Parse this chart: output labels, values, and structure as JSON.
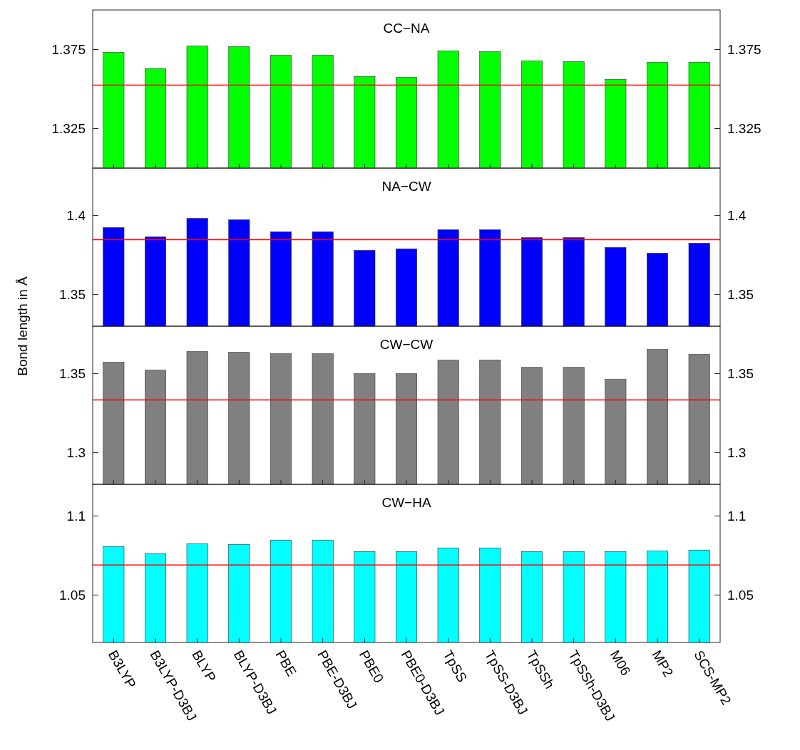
{
  "chart_data": [
    {
      "type": "bar",
      "title": "CC−NA",
      "categories": [
        null,
        null,
        null,
        null,
        null,
        null,
        null,
        null,
        null,
        null,
        null,
        null,
        null,
        null,
        null
      ],
      "values": [
        1.3732,
        1.3629,
        1.3772,
        1.3768,
        1.3714,
        1.3714,
        1.3579,
        1.3574,
        1.3741,
        1.3736,
        1.3678,
        1.3673,
        1.3561,
        1.3669,
        1.3669
      ],
      "color": "#00ff00",
      "ylim": [
        1.3,
        1.4
      ],
      "yticks": [
        1.325,
        1.375
      ],
      "y2lim": [
        1.3,
        1.4
      ],
      "y2ticks": [
        1.325,
        1.375
      ],
      "ref_lines": [
        {
          "axis": "y",
          "value": 1.3525,
          "color": "#ff0000"
        }
      ]
    },
    {
      "type": "bar",
      "title": "NA−CW",
      "categories": [
        null,
        null,
        null,
        null,
        null,
        null,
        null,
        null,
        null,
        null,
        null,
        null,
        null,
        null,
        null
      ],
      "values": [
        1.3924,
        1.3865,
        1.3982,
        1.3973,
        1.3897,
        1.3897,
        1.378,
        1.3789,
        1.391,
        1.391,
        1.386,
        1.386,
        1.3798,
        1.3762,
        1.3825
      ],
      "color": "#0000ff",
      "ylim": [
        1.33,
        1.43
      ],
      "yticks": [
        1.35,
        1.4
      ],
      "y2lim": [
        1.33,
        1.43
      ],
      "y2ticks": [
        1.35,
        1.4
      ],
      "ref_lines": [
        {
          "axis": "y",
          "value": 1.3847,
          "color": "#ff0000"
        }
      ]
    },
    {
      "type": "bar",
      "title": "CW−CW",
      "ylabel": "Bond length in Å",
      "categories": [
        null,
        null,
        null,
        null,
        null,
        null,
        null,
        null,
        null,
        null,
        null,
        null,
        null,
        null,
        null
      ],
      "values": [
        1.3572,
        1.3522,
        1.364,
        1.3635,
        1.3626,
        1.3626,
        1.35,
        1.35,
        1.3586,
        1.3586,
        1.354,
        1.354,
        1.3464,
        1.3653,
        1.3622
      ],
      "color": "#808080",
      "ylim": [
        1.28,
        1.38
      ],
      "yticks": [
        1.3,
        1.35
      ],
      "y2lim": [
        1.28,
        1.38
      ],
      "y2ticks": [
        1.3,
        1.35
      ],
      "ref_lines": [
        {
          "axis": "y",
          "value": 1.3334,
          "color": "#ff0000"
        }
      ]
    },
    {
      "type": "bar",
      "title": "CW−HA",
      "categories": [
        "B3LYP",
        "B3LYP-D3BJ",
        "BLYP",
        "BLYP-D3BJ",
        "PBE",
        "PBE-D3BJ",
        "PBE0",
        "PBE0-D3BJ",
        "TpSS",
        "TpSS-D3BJ",
        "TpSSh",
        "TpSSh-D3BJ",
        "M06",
        "MP2",
        "SCS-MP2"
      ],
      "values": [
        1.0807,
        1.0762,
        1.0825,
        1.082,
        1.0847,
        1.0847,
        1.0775,
        1.0775,
        1.0798,
        1.0798,
        1.0775,
        1.0775,
        1.0775,
        1.0779,
        1.0784
      ],
      "color": "#00ffff",
      "ylim": [
        1.02,
        1.12
      ],
      "yticks": [
        1.05,
        1.1
      ],
      "y2lim": [
        1.02,
        1.12
      ],
      "y2ticks": [
        1.05,
        1.1
      ],
      "ref_lines": [
        {
          "axis": "y",
          "value": 1.069,
          "color": "#ff0000"
        }
      ]
    }
  ]
}
